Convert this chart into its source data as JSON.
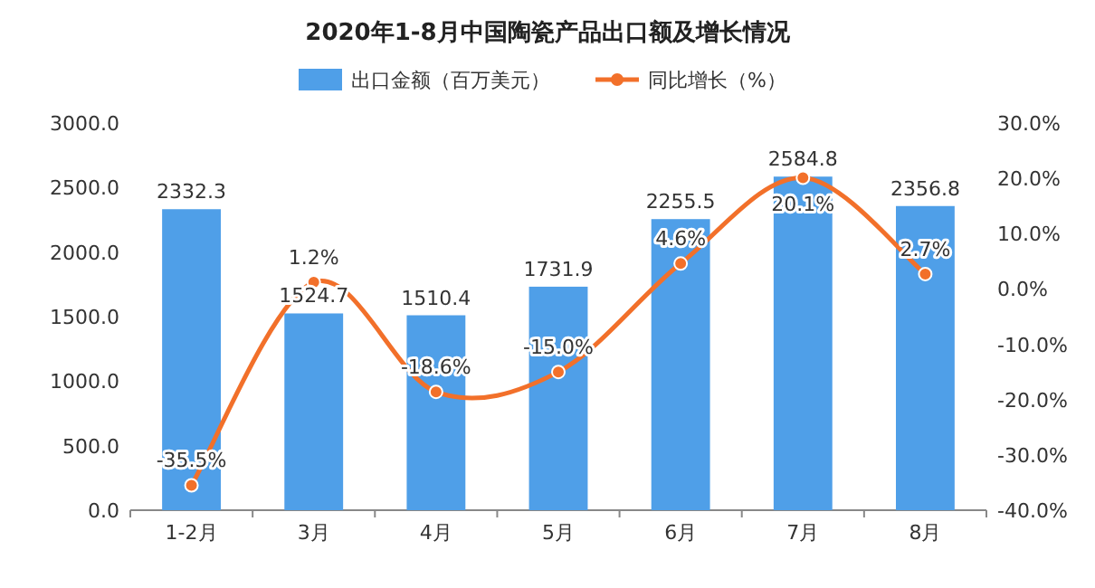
{
  "chart_data": {
    "type": "bar",
    "title": "2020年1-8月中国陶瓷产品出口额及增长情况",
    "categories": [
      "1-2月",
      "3月",
      "4月",
      "5月",
      "6月",
      "7月",
      "8月"
    ],
    "series": [
      {
        "name": "出口金额（百万美元）",
        "color": "#4f9fe8",
        "values": [
          2332.3,
          1524.7,
          1510.4,
          1731.9,
          2255.5,
          2584.8,
          2356.8
        ],
        "value_labels": [
          "2332.3",
          "1524.7",
          "1510.4",
          "1731.9",
          "2255.5",
          "2584.8",
          "2356.8"
        ]
      },
      {
        "type": "line",
        "name": "同比增长（%）",
        "color": "#f2702a",
        "axis": "y2",
        "marker": "circle",
        "values": [
          -35.5,
          1.2,
          -18.6,
          -15.0,
          4.6,
          20.1,
          2.7
        ],
        "value_labels": [
          "-35.5%",
          "1.2%",
          "-18.6%",
          "-15.0%",
          "4.6%",
          "20.1%",
          "2.7%"
        ]
      }
    ],
    "ylim": [
      0,
      3000
    ],
    "yticks": [
      {
        "value": 0,
        "label": "0.0"
      },
      {
        "value": 500,
        "label": "500.0"
      },
      {
        "value": 1000,
        "label": "1000.0"
      },
      {
        "value": 1500,
        "label": "1500.0"
      },
      {
        "value": 2000,
        "label": "2000.0"
      },
      {
        "value": 2500,
        "label": "2500.0"
      },
      {
        "value": 3000,
        "label": "3000.0"
      }
    ],
    "y2lim": [
      -40,
      30
    ],
    "y2ticks": [
      {
        "value": -40,
        "label": "-40.0%"
      },
      {
        "value": -30,
        "label": "-30.0%"
      },
      {
        "value": -20,
        "label": "-20.0%"
      },
      {
        "value": -10,
        "label": "-10.0%"
      },
      {
        "value": 0,
        "label": "0.0%"
      },
      {
        "value": 10,
        "label": "10.0%"
      },
      {
        "value": 20,
        "label": "20.0%"
      },
      {
        "value": 30,
        "label": "30.0%"
      }
    ],
    "legend": "top"
  }
}
